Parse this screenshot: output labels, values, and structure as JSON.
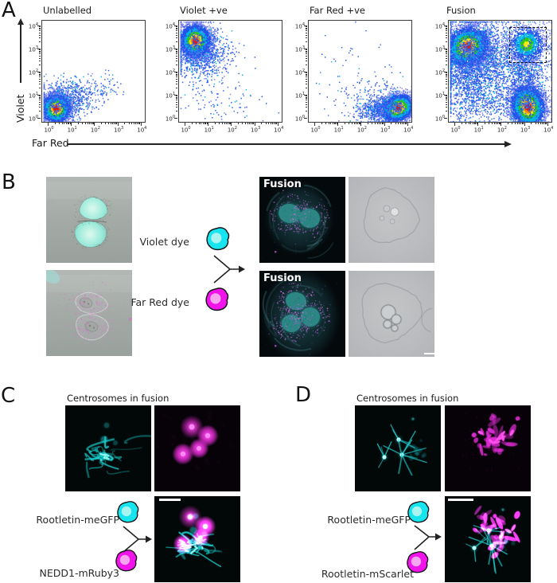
{
  "colors": {
    "icon_cyan": "#16e4ee",
    "icon_cyan_nucleus": "#a9f4f0",
    "icon_magenta": "#f114ea",
    "icon_magenta_nucleus": "#f6a6ee",
    "micro_cyan": "#2de0dc",
    "micro_magenta": "#e832d8",
    "scalebar_white": "#ffffff",
    "flow_palette": [
      "#7d84f2",
      "#2353e8",
      "#00b4e6",
      "#2ec814",
      "#f5e612",
      "#fb8c00",
      "#e41c00"
    ]
  },
  "panelA": {
    "label": "A",
    "x_label": "Far Red",
    "y_label": "Violet",
    "plot_titles": [
      "Unlabelled",
      "Violet +ve",
      "Far Red +ve",
      "Fusion"
    ],
    "tick_exponents": [
      "0",
      "1",
      "2",
      "3",
      "4"
    ]
  },
  "chart_data": [
    {
      "type": "scatter",
      "subtype": "flow-cytometry-density",
      "title": "Unlabelled",
      "xlabel": "Far Red",
      "ylabel": "Violet",
      "xscale": "log",
      "yscale": "log",
      "xlim_decades": [
        0,
        4
      ],
      "ylim_decades": [
        0,
        4
      ],
      "populations": [
        {
          "kind": "dense",
          "cx": 0.35,
          "cy": 0.42,
          "sx": 0.3,
          "sy": 0.3,
          "rot": 0.35,
          "n": 4200
        },
        {
          "kind": "sparse",
          "cx": 0.7,
          "cy": 0.75,
          "sx": 0.55,
          "sy": 0.45,
          "rot": 0.4,
          "n": 700
        },
        {
          "kind": "sparse",
          "cx": 1.7,
          "cy": 1.1,
          "sx": 0.65,
          "sy": 0.35,
          "rot": 0.35,
          "n": 200
        }
      ]
    },
    {
      "type": "scatter",
      "subtype": "flow-cytometry-density",
      "title": "Violet +ve",
      "xlabel": "Far Red",
      "ylabel": "Violet",
      "xscale": "log",
      "yscale": "log",
      "xlim_decades": [
        0,
        4
      ],
      "ylim_decades": [
        0,
        4
      ],
      "populations": [
        {
          "kind": "dense",
          "cx": 0.45,
          "cy": 3.35,
          "sx": 0.32,
          "sy": 0.34,
          "rot": 0.2,
          "n": 4800
        },
        {
          "kind": "sparse",
          "cx": 0.7,
          "cy": 2.85,
          "sx": 0.55,
          "sy": 0.55,
          "rot": 0,
          "n": 900
        },
        {
          "kind": "sparse",
          "cx": 1.0,
          "cy": 1.6,
          "sx": 0.8,
          "sy": 0.9,
          "rot": 0,
          "n": 130
        },
        {
          "kind": "sparse",
          "cx": 2.2,
          "cy": 0.4,
          "sx": 0.9,
          "sy": 0.4,
          "rot": 0,
          "n": 40
        }
      ]
    },
    {
      "type": "scatter",
      "subtype": "flow-cytometry-density",
      "title": "Far Red +ve",
      "xlabel": "Far Red",
      "ylabel": "Violet",
      "xscale": "log",
      "yscale": "log",
      "xlim_decades": [
        0,
        4
      ],
      "ylim_decades": [
        0,
        4
      ],
      "populations": [
        {
          "kind": "dense",
          "cx": 3.6,
          "cy": 0.45,
          "sx": 0.34,
          "sy": 0.26,
          "rot": 0.5,
          "n": 4800
        },
        {
          "kind": "sparse",
          "cx": 2.95,
          "cy": 0.4,
          "sx": 0.55,
          "sy": 0.3,
          "rot": 0.2,
          "n": 800
        },
        {
          "kind": "sparse",
          "cx": 2.3,
          "cy": 0.95,
          "sx": 0.8,
          "sy": 0.55,
          "rot": 0.3,
          "n": 160
        },
        {
          "kind": "sparse",
          "cx": 1.0,
          "cy": 2.5,
          "sx": 0.8,
          "sy": 0.8,
          "rot": 0,
          "n": 30
        }
      ]
    },
    {
      "type": "scatter",
      "subtype": "flow-cytometry-density",
      "title": "Fusion",
      "xlabel": "Far Red",
      "ylabel": "Violet",
      "xscale": "log",
      "yscale": "log",
      "xlim_decades": [
        0,
        4
      ],
      "ylim_decades": [
        0,
        4
      ],
      "gate": {
        "x0": 2.35,
        "x1": 3.9,
        "y0": 2.45,
        "y1": 3.95
      },
      "populations": [
        {
          "kind": "dense",
          "cx": 0.55,
          "cy": 3.1,
          "sx": 0.45,
          "sy": 0.4,
          "rot": 0.6,
          "n": 5200
        },
        {
          "kind": "sparse",
          "cx": 0.8,
          "cy": 2.55,
          "sx": 0.75,
          "sy": 0.75,
          "rot": 0,
          "n": 1600
        },
        {
          "kind": "sparse",
          "cx": 0.5,
          "cy": 1.2,
          "sx": 0.5,
          "sy": 0.9,
          "rot": 0,
          "n": 500
        },
        {
          "kind": "dense",
          "cx": 3.15,
          "cy": 0.5,
          "sx": 0.35,
          "sy": 0.45,
          "rot": 0.2,
          "n": 4800
        },
        {
          "kind": "sparse",
          "cx": 3.1,
          "cy": 1.6,
          "sx": 0.4,
          "sy": 0.9,
          "rot": 0,
          "n": 900
        },
        {
          "kind": "medium",
          "cx": 3.1,
          "cy": 3.2,
          "sx": 0.4,
          "sy": 0.4,
          "rot": 0,
          "n": 1400
        },
        {
          "kind": "sparse",
          "cx": 1.8,
          "cy": 2.2,
          "sx": 1.3,
          "sy": 1.2,
          "rot": 0,
          "n": 1300
        },
        {
          "kind": "sparse",
          "cx": 2.0,
          "cy": 0.6,
          "sx": 0.9,
          "sy": 0.5,
          "rot": 0,
          "n": 300
        }
      ]
    }
  ],
  "panelB": {
    "label": "B",
    "violet_dye_label": "Violet dye",
    "far_red_dye_label": "Far Red dye",
    "fusion_label": "Fusion"
  },
  "panelC": {
    "label": "C",
    "title": "Centrosomes in fusion",
    "protein1_label": "Rootletin-meGFP",
    "protein2_label": "NEDD1-mRuby3"
  },
  "panelD": {
    "label": "D",
    "title": "Centrosomes in fusion",
    "protein1_label": "Rootletin-meGFP",
    "protein2_label": "Rootletin-mScarlet"
  },
  "images": [
    {
      "name": "b-violet-cells-image",
      "kind": "cells-cyan",
      "seed": 11
    },
    {
      "name": "b-farred-cells-image",
      "kind": "cells-magenta",
      "seed": 12
    },
    {
      "name": "b-fusion1-image",
      "kind": "fusion-cell",
      "nuclei": 2,
      "seed": 13
    },
    {
      "name": "b-brightfield1-image",
      "kind": "brightfield",
      "variant": 1,
      "seed": 14
    },
    {
      "name": "b-fusion2-image",
      "kind": "fusion-cell",
      "nuclei": 3,
      "seed": 15
    },
    {
      "name": "b-brightfield2-image",
      "kind": "brightfield",
      "variant": 2,
      "seed": 16
    },
    {
      "name": "c-rootletin-image",
      "kind": "centro-cyan",
      "style": "tangle",
      "seed": 21
    },
    {
      "name": "c-nedd1-image",
      "kind": "centro-magenta",
      "style": "puncta",
      "seed": 22
    },
    {
      "name": "c-overlay-image",
      "kind": "centro-overlay",
      "style": "C",
      "seed": 23
    },
    {
      "name": "d-rootletin-image",
      "kind": "centro-cyan",
      "style": "aster",
      "seed": 31
    },
    {
      "name": "d-mscarlet-image",
      "kind": "centro-magenta",
      "style": "patches",
      "seed": 32
    },
    {
      "name": "d-overlay-image",
      "kind": "centro-overlay",
      "style": "D",
      "seed": 33
    }
  ]
}
